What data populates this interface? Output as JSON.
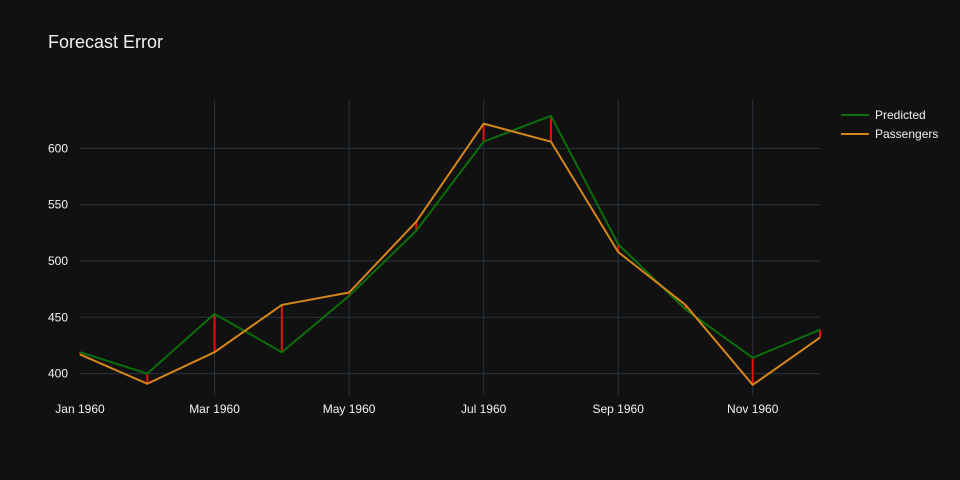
{
  "colors": {
    "background": "#111111",
    "grid": "#283442",
    "predicted": "#0b6e0b",
    "passengers": "#d4861b",
    "error": "#e3120b",
    "text": "#f2f2f2"
  },
  "chart_data": {
    "type": "line",
    "title": "Forecast Error",
    "xlabel": "",
    "ylabel": "",
    "x": [
      "1960-01",
      "1960-02",
      "1960-03",
      "1960-04",
      "1960-05",
      "1960-06",
      "1960-07",
      "1960-08",
      "1960-09",
      "1960-10",
      "1960-11",
      "1960-12"
    ],
    "x_tick_labels": [
      "Jan 1960",
      "Mar 1960",
      "May 1960",
      "Jul 1960",
      "Sep 1960",
      "Nov 1960"
    ],
    "x_tick_values": [
      "1960-01",
      "1960-03",
      "1960-05",
      "1960-07",
      "1960-09",
      "1960-11"
    ],
    "y_ticks": [
      400,
      450,
      500,
      550,
      600
    ],
    "ylim": [
      381,
      643
    ],
    "grid": true,
    "legend_position": "top-right",
    "series": [
      {
        "name": "Predicted",
        "values": [
          419,
          400,
          453,
          419,
          469,
          527,
          606,
          629,
          515,
          457,
          414,
          439
        ]
      },
      {
        "name": "Passengers",
        "values": [
          417,
          391,
          419,
          461,
          472,
          535,
          622,
          606,
          508,
          461,
          390,
          432
        ]
      }
    ],
    "error_bars": "vertical red segments between Predicted and Passengers at each month"
  }
}
